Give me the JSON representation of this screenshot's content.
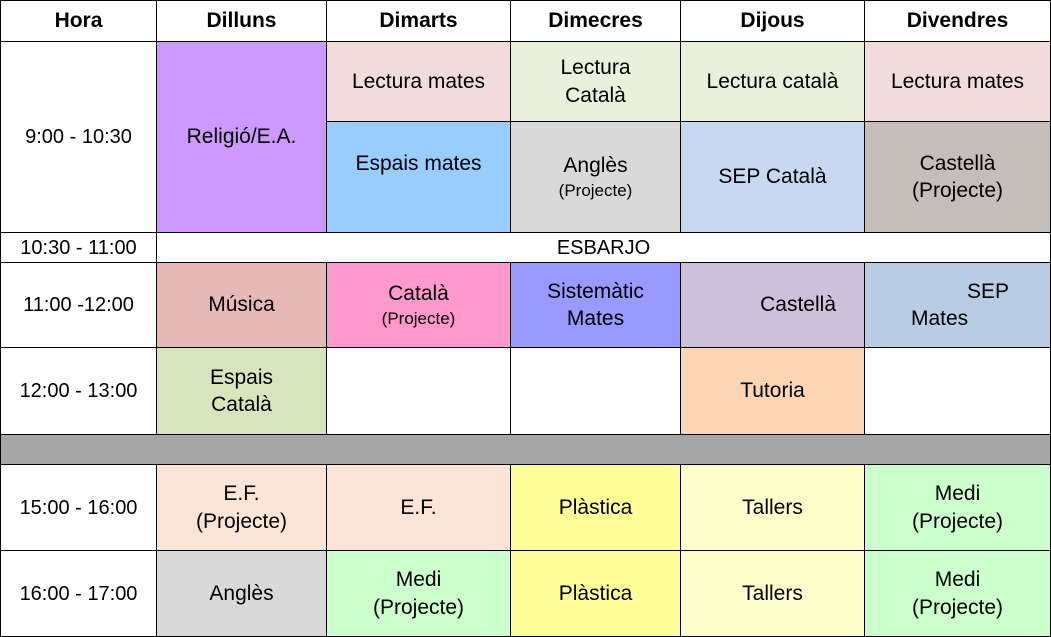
{
  "header": {
    "hora": "Hora",
    "days": [
      "Dilluns",
      "Dimarts",
      "Dimecres",
      "Dijous",
      "Divendres"
    ]
  },
  "times": {
    "t1": "9:00 - 10:30",
    "t2": "10:30 - 11:00",
    "t3": "11:00 -12:00",
    "t4": "12:00 - 13:00",
    "t5": "15:00 - 16:00",
    "t6": "16:00 - 17:00"
  },
  "break_label": "ESBARJO",
  "cells": {
    "mon_1": "Religió/E.A.",
    "tue_1a": "Lectura mates",
    "wed_1a_l1": "Lectura",
    "wed_1a_l2": "Català",
    "thu_1a": "Lectura català",
    "fri_1a": "Lectura mates",
    "tue_1b": "Espais mates",
    "wed_1b_main": "Anglès",
    "wed_1b_sub": "(Projecte)",
    "thu_1b": "SEP Català",
    "fri_1b_l1": "Castellà",
    "fri_1b_l2": "(Projecte)",
    "mon_3": "Música",
    "tue_3_main": "Català",
    "tue_3_sub": "(Projecte)",
    "wed_3_l1": "Sistemàtic",
    "wed_3_l2": "Mates",
    "thu_3": "Castellà",
    "fri_3_l1": "SEP",
    "fri_3_l2": "Mates",
    "mon_4_l1": "Espais",
    "mon_4_l2": "Català",
    "thu_4": "Tutoria",
    "mon_5_l1": "E.F.",
    "mon_5_l2": "(Projecte)",
    "tue_5": "E.F.",
    "wed_5": "Plàstica",
    "thu_5": "Tallers",
    "fri_5_l1": "Medi",
    "fri_5_l2": "(Projecte)",
    "mon_6": "Anglès",
    "tue_6_l1": "Medi",
    "tue_6_l2": "(Projecte)",
    "wed_6": "Plàstica",
    "thu_6": "Tallers",
    "fri_6_l1": "Medi",
    "fri_6_l2": "(Projecte)"
  },
  "colors": {
    "religio": "#cc99ff",
    "lectura_mates": "#f1dcdb",
    "lectura_catala": "#e9f1dd",
    "espais_mates": "#99ccff",
    "angles": "#d9d9d9",
    "sep_catala": "#c6d9f0",
    "castella_projecte": "#c4bdb9",
    "musica": "#e6b9b8",
    "catala_projecte": "#ff99cc",
    "sistematic_mates": "#9999ff",
    "castella": "#ccc0da",
    "sep_mates": "#b8cce4",
    "espais_catala": "#d8e4bc",
    "tutoria": "#fcd5b4",
    "ef": "#fce4d6",
    "plastica": "#ffff99",
    "tallers": "#ffffcc",
    "medi": "#ccffcc",
    "lunch": "#a6a6a6"
  }
}
